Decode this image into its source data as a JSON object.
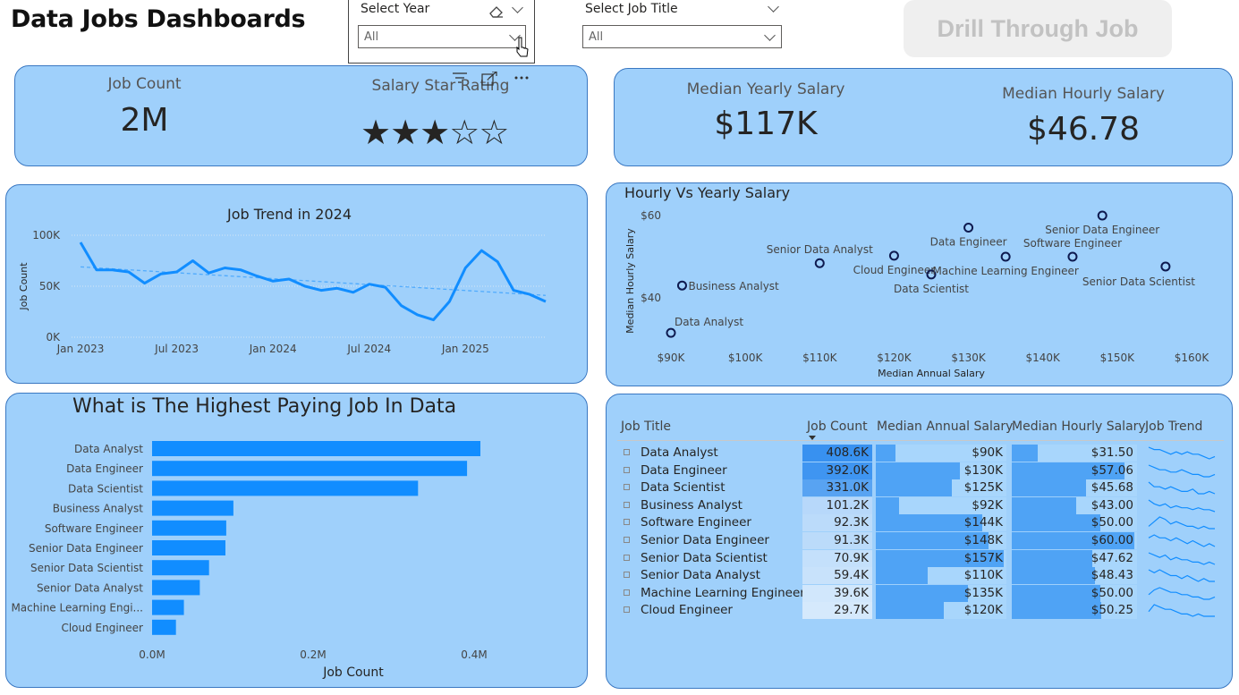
{
  "page": {
    "title": "Data Jobs Dashboards"
  },
  "slicers": {
    "year": {
      "label": "Select Year",
      "value": "All"
    },
    "job_title": {
      "label": "Select Job Title",
      "value": "All"
    }
  },
  "drill_button": {
    "label": "Drill Through Job"
  },
  "kpis": {
    "job_count": {
      "label": "Job Count",
      "value": "2M"
    },
    "salary_star_rating": {
      "label": "Salary Star Rating",
      "stars_filled": 3,
      "stars_total": 5,
      "filled_glyph": "★",
      "empty_glyph": "☆"
    },
    "median_yearly": {
      "label": "Median Yearly Salary",
      "value": "$117K"
    },
    "median_hourly": {
      "label": "Median Hourly Salary",
      "value": "$46.78"
    }
  },
  "visual_header_icons": [
    "filter-icon",
    "focus-mode-icon",
    "more-options-icon"
  ],
  "colors": {
    "card_bg": "#9fd0fb",
    "card_border": "#3a78c2",
    "bar": "#118dff",
    "line": "#118dff",
    "point": "#0e1a4f"
  },
  "chart_data": [
    {
      "type": "line",
      "title": "Job Trend in 2024",
      "ylabel": "Job Count",
      "x_ticks": [
        "Jan 2023",
        "Jul 2023",
        "Jan 2024",
        "Jul 2024",
        "Jan 2025"
      ],
      "y_ticks": [
        "0K",
        "50K",
        "100K"
      ],
      "ylim": [
        0,
        100000
      ],
      "x": [
        "2023-01",
        "2023-02",
        "2023-03",
        "2023-04",
        "2023-05",
        "2023-06",
        "2023-07",
        "2023-08",
        "2023-09",
        "2023-10",
        "2023-11",
        "2023-12",
        "2024-01",
        "2024-02",
        "2024-03",
        "2024-04",
        "2024-05",
        "2024-06",
        "2024-07",
        "2024-08",
        "2024-09",
        "2024-10",
        "2024-11",
        "2024-12",
        "2025-01",
        "2025-02",
        "2025-03",
        "2025-04",
        "2025-05",
        "2025-06"
      ],
      "values": [
        93000,
        66000,
        66000,
        64000,
        53000,
        62000,
        64000,
        75000,
        63000,
        68000,
        66000,
        60000,
        55000,
        57000,
        50000,
        46000,
        48000,
        44000,
        52000,
        49000,
        31000,
        22000,
        17000,
        35000,
        68000,
        85000,
        74000,
        46000,
        42000,
        35000
      ],
      "trendline": {
        "start": 69000,
        "end": 41000
      },
      "grid": true
    },
    {
      "type": "scatter",
      "title": "Hourly Vs Yearly Salary",
      "xlabel": "Median Annual Salary",
      "ylabel": "Median Hourly Salary",
      "x_ticks": [
        "$90K",
        "$100K",
        "$110K",
        "$120K",
        "$130K",
        "$140K",
        "$150K",
        "$160K"
      ],
      "y_ticks": [
        "$40",
        "$60"
      ],
      "xlim": [
        90000,
        160000
      ],
      "ylim": [
        30,
        60
      ],
      "points": [
        {
          "label": "Data Analyst",
          "x": 90000,
          "y": 31.5
        },
        {
          "label": "Business Analyst",
          "x": 91500,
          "y": 43.0
        },
        {
          "label": "Senior Data Analyst",
          "x": 110000,
          "y": 48.43
        },
        {
          "label": "Cloud Engineer",
          "x": 120000,
          "y": 50.25
        },
        {
          "label": "Data Scientist",
          "x": 125000,
          "y": 45.68
        },
        {
          "label": "Data Engineer",
          "x": 130000,
          "y": 57.06
        },
        {
          "label": "Machine Learning Engineer",
          "x": 135000,
          "y": 50.0
        },
        {
          "label": "Software Engineer",
          "x": 144000,
          "y": 50.0
        },
        {
          "label": "Senior Data Engineer",
          "x": 148000,
          "y": 60.0
        },
        {
          "label": "Senior Data Scientist",
          "x": 156500,
          "y": 47.62
        }
      ]
    },
    {
      "type": "bar",
      "orientation": "horizontal",
      "title": "What is The Highest Paying Job In Data",
      "xlabel": "Job Count",
      "x_ticks": [
        "0.0M",
        "0.2M",
        "0.4M"
      ],
      "xlim": [
        0,
        408600
      ],
      "categories": [
        "Data Analyst",
        "Data Engineer",
        "Data Scientist",
        "Business Analyst",
        "Software Engineer",
        "Senior Data Engineer",
        "Senior Data Scientist",
        "Senior Data Analyst",
        "Machine Learning Engi...",
        "Cloud Engineer"
      ],
      "values": [
        408600,
        392000,
        331000,
        101200,
        92300,
        91300,
        70900,
        59400,
        39600,
        29700
      ]
    }
  ],
  "table": {
    "columns": [
      "Job Title",
      "Job Count",
      "Median Annual Salary",
      "Median Hourly Salary",
      "Job Trend"
    ],
    "rows": [
      {
        "title": "Data Analyst",
        "count": "408.6K",
        "count_val": 408600,
        "annual": "$90K",
        "annual_val": 90000,
        "hourly": "$31.50",
        "hourly_val": 31.5,
        "trend": [
          9,
          8,
          8,
          7,
          6,
          7,
          6,
          7,
          6,
          6,
          5,
          4,
          5
        ]
      },
      {
        "title": "Data Engineer",
        "count": "392.0K",
        "count_val": 392000,
        "annual": "$130K",
        "annual_val": 130000,
        "hourly": "$57.06",
        "hourly_val": 57.06,
        "trend": [
          9,
          8,
          7,
          7,
          6,
          6,
          7,
          6,
          5,
          5,
          4,
          4,
          5
        ]
      },
      {
        "title": "Data Scientist",
        "count": "331.0K",
        "count_val": 331000,
        "annual": "$125K",
        "annual_val": 125000,
        "hourly": "$45.68",
        "hourly_val": 45.68,
        "trend": [
          9,
          7,
          7,
          6,
          7,
          6,
          5,
          5,
          6,
          4,
          4,
          5,
          4
        ]
      },
      {
        "title": "Business Analyst",
        "count": "101.2K",
        "count_val": 101200,
        "annual": "$92K",
        "annual_val": 92000,
        "hourly": "$43.00",
        "hourly_val": 43.0,
        "trend": [
          9,
          7,
          6,
          7,
          5,
          6,
          5,
          5,
          4,
          5,
          4,
          4,
          3
        ]
      },
      {
        "title": "Software Engineer",
        "count": "92.3K",
        "count_val": 92300,
        "annual": "$144K",
        "annual_val": 144000,
        "hourly": "$50.00",
        "hourly_val": 50.0,
        "trend": [
          5,
          7,
          9,
          8,
          6,
          7,
          6,
          5,
          5,
          4,
          5,
          4,
          4
        ]
      },
      {
        "title": "Senior Data Engineer",
        "count": "91.3K",
        "count_val": 91300,
        "annual": "$148K",
        "annual_val": 148000,
        "hourly": "$60.00",
        "hourly_val": 60.0,
        "trend": [
          7,
          8,
          7,
          7,
          6,
          7,
          6,
          5,
          6,
          5,
          4,
          5,
          4
        ]
      },
      {
        "title": "Senior Data Scientist",
        "count": "70.9K",
        "count_val": 70900,
        "annual": "$157K",
        "annual_val": 157000,
        "hourly": "$47.62",
        "hourly_val": 47.62,
        "trend": [
          9,
          8,
          7,
          8,
          6,
          7,
          6,
          6,
          5,
          5,
          4,
          5,
          4
        ]
      },
      {
        "title": "Senior Data Analyst",
        "count": "59.4K",
        "count_val": 59400,
        "annual": "$110K",
        "annual_val": 110000,
        "hourly": "$48.43",
        "hourly_val": 48.43,
        "trend": [
          8,
          7,
          8,
          7,
          6,
          6,
          5,
          6,
          5,
          4,
          5,
          4,
          4
        ]
      },
      {
        "title": "Machine Learning Engineer",
        "count": "39.6K",
        "count_val": 39600,
        "annual": "$135K",
        "annual_val": 135000,
        "hourly": "$50.00",
        "hourly_val": 50.0,
        "trend": [
          6,
          8,
          9,
          8,
          7,
          7,
          6,
          6,
          5,
          5,
          4,
          4,
          5
        ]
      },
      {
        "title": "Cloud Engineer",
        "count": "29.7K",
        "count_val": 29700,
        "annual": "$120K",
        "annual_val": 120000,
        "hourly": "$50.25",
        "hourly_val": 50.25,
        "trend": [
          6,
          9,
          8,
          7,
          7,
          6,
          5,
          5,
          4,
          5,
          4,
          4,
          4
        ]
      }
    ]
  }
}
